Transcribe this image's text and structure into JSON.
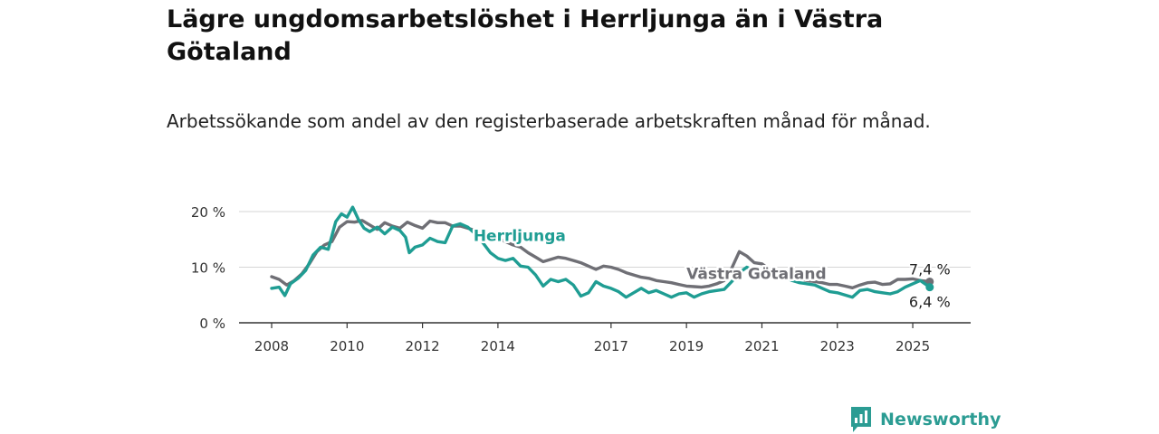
{
  "header": {
    "title": "Lägre ungdomsarbetslöshet i Herrljunga än i Västra Götaland",
    "subtitle": "Arbetssökande som andel av den registerbaserade arbetskraften månad för månad."
  },
  "brand": {
    "name": "Newsworthy",
    "color": "#2b9c93"
  },
  "chart_data": {
    "type": "line",
    "x_unit": "year",
    "xlim": [
      2007.6,
      2025.75
    ],
    "ylim": [
      0,
      20
    ],
    "y_ticks": [
      {
        "value": 0,
        "label": "0 %"
      },
      {
        "value": 10,
        "label": "10 %"
      },
      {
        "value": 20,
        "label": "20 %"
      }
    ],
    "x_ticks": [
      {
        "value": 2008,
        "label": "2008"
      },
      {
        "value": 2010,
        "label": "2010"
      },
      {
        "value": 2012,
        "label": "2012"
      },
      {
        "value": 2014,
        "label": "2014"
      },
      {
        "value": 2017,
        "label": "2017"
      },
      {
        "value": 2019,
        "label": "2019"
      },
      {
        "value": 2021,
        "label": "2021"
      },
      {
        "value": 2023,
        "label": "2023"
      },
      {
        "value": 2025,
        "label": "2025"
      }
    ],
    "grid": true,
    "series": [
      {
        "name": "Västra Götaland",
        "color": "#6f6f75",
        "end_label": "7,4 %",
        "points": [
          [
            2008.0,
            8.3
          ],
          [
            2008.2,
            7.8
          ],
          [
            2008.4,
            6.8
          ],
          [
            2008.6,
            7.6
          ],
          [
            2008.8,
            8.8
          ],
          [
            2009.0,
            10.6
          ],
          [
            2009.2,
            12.8
          ],
          [
            2009.4,
            14.0
          ],
          [
            2009.6,
            14.6
          ],
          [
            2009.8,
            17.2
          ],
          [
            2010.0,
            18.2
          ],
          [
            2010.2,
            18.1
          ],
          [
            2010.4,
            18.4
          ],
          [
            2010.6,
            17.6
          ],
          [
            2010.8,
            16.8
          ],
          [
            2011.0,
            18.0
          ],
          [
            2011.2,
            17.4
          ],
          [
            2011.4,
            17.0
          ],
          [
            2011.6,
            18.1
          ],
          [
            2011.8,
            17.5
          ],
          [
            2012.0,
            17.0
          ],
          [
            2012.2,
            18.3
          ],
          [
            2012.4,
            18.0
          ],
          [
            2012.6,
            18.0
          ],
          [
            2012.8,
            17.4
          ],
          [
            2013.0,
            17.4
          ],
          [
            2013.2,
            17.0
          ],
          [
            2013.4,
            16.6
          ],
          [
            2013.6,
            16.5
          ],
          [
            2013.8,
            15.6
          ],
          [
            2014.0,
            15.2
          ],
          [
            2014.2,
            14.6
          ],
          [
            2014.4,
            14.0
          ],
          [
            2014.6,
            13.6
          ],
          [
            2014.8,
            12.6
          ],
          [
            2015.0,
            11.8
          ],
          [
            2015.2,
            11.0
          ],
          [
            2015.4,
            11.4
          ],
          [
            2015.6,
            11.8
          ],
          [
            2015.8,
            11.6
          ],
          [
            2016.0,
            11.2
          ],
          [
            2016.2,
            10.8
          ],
          [
            2016.4,
            10.2
          ],
          [
            2016.6,
            9.6
          ],
          [
            2016.8,
            10.2
          ],
          [
            2017.0,
            10.0
          ],
          [
            2017.2,
            9.6
          ],
          [
            2017.4,
            9.0
          ],
          [
            2017.6,
            8.6
          ],
          [
            2017.8,
            8.2
          ],
          [
            2018.0,
            8.0
          ],
          [
            2018.2,
            7.6
          ],
          [
            2018.4,
            7.4
          ],
          [
            2018.6,
            7.2
          ],
          [
            2018.8,
            6.9
          ],
          [
            2019.0,
            6.6
          ],
          [
            2019.2,
            6.5
          ],
          [
            2019.4,
            6.4
          ],
          [
            2019.6,
            6.6
          ],
          [
            2019.8,
            7.0
          ],
          [
            2020.0,
            7.6
          ],
          [
            2020.2,
            9.8
          ],
          [
            2020.4,
            12.8
          ],
          [
            2020.6,
            12.0
          ],
          [
            2020.8,
            10.8
          ],
          [
            2021.0,
            10.6
          ],
          [
            2021.2,
            9.6
          ],
          [
            2021.4,
            9.2
          ],
          [
            2021.6,
            8.6
          ],
          [
            2021.8,
            8.2
          ],
          [
            2022.0,
            7.9
          ],
          [
            2022.2,
            7.6
          ],
          [
            2022.4,
            7.4
          ],
          [
            2022.6,
            7.2
          ],
          [
            2022.8,
            6.9
          ],
          [
            2023.0,
            6.9
          ],
          [
            2023.2,
            6.6
          ],
          [
            2023.4,
            6.3
          ],
          [
            2023.6,
            6.8
          ],
          [
            2023.8,
            7.2
          ],
          [
            2024.0,
            7.3
          ],
          [
            2024.2,
            6.9
          ],
          [
            2024.4,
            7.0
          ],
          [
            2024.6,
            7.8
          ],
          [
            2024.8,
            7.8
          ],
          [
            2025.0,
            7.9
          ],
          [
            2025.2,
            7.6
          ],
          [
            2025.45,
            7.4
          ]
        ]
      },
      {
        "name": "Herrljunga",
        "color": "#1f9d93",
        "end_label": "6,4 %",
        "points": [
          [
            2008.0,
            6.2
          ],
          [
            2008.2,
            6.4
          ],
          [
            2008.35,
            4.9
          ],
          [
            2008.5,
            7.0
          ],
          [
            2008.7,
            8.0
          ],
          [
            2008.9,
            9.4
          ],
          [
            2009.1,
            12.2
          ],
          [
            2009.3,
            13.6
          ],
          [
            2009.5,
            13.2
          ],
          [
            2009.7,
            18.2
          ],
          [
            2009.85,
            19.6
          ],
          [
            2010.0,
            19.0
          ],
          [
            2010.15,
            20.8
          ],
          [
            2010.3,
            18.6
          ],
          [
            2010.45,
            17.0
          ],
          [
            2010.6,
            16.4
          ],
          [
            2010.8,
            17.2
          ],
          [
            2011.0,
            16.0
          ],
          [
            2011.2,
            17.2
          ],
          [
            2011.4,
            16.6
          ],
          [
            2011.55,
            15.4
          ],
          [
            2011.65,
            12.6
          ],
          [
            2011.8,
            13.6
          ],
          [
            2012.0,
            14.0
          ],
          [
            2012.2,
            15.2
          ],
          [
            2012.4,
            14.6
          ],
          [
            2012.6,
            14.4
          ],
          [
            2012.8,
            17.4
          ],
          [
            2013.0,
            17.8
          ],
          [
            2013.2,
            17.2
          ],
          [
            2013.4,
            16.0
          ],
          [
            2013.6,
            14.4
          ],
          [
            2013.8,
            12.6
          ],
          [
            2014.0,
            11.6
          ],
          [
            2014.2,
            11.2
          ],
          [
            2014.4,
            11.6
          ],
          [
            2014.6,
            10.2
          ],
          [
            2014.8,
            10.0
          ],
          [
            2015.0,
            8.6
          ],
          [
            2015.2,
            6.6
          ],
          [
            2015.4,
            7.8
          ],
          [
            2015.6,
            7.4
          ],
          [
            2015.8,
            7.8
          ],
          [
            2016.0,
            6.8
          ],
          [
            2016.2,
            4.8
          ],
          [
            2016.4,
            5.4
          ],
          [
            2016.6,
            7.4
          ],
          [
            2016.8,
            6.6
          ],
          [
            2017.0,
            6.2
          ],
          [
            2017.2,
            5.6
          ],
          [
            2017.4,
            4.6
          ],
          [
            2017.6,
            5.4
          ],
          [
            2017.8,
            6.2
          ],
          [
            2018.0,
            5.4
          ],
          [
            2018.2,
            5.8
          ],
          [
            2018.4,
            5.2
          ],
          [
            2018.6,
            4.6
          ],
          [
            2018.8,
            5.2
          ],
          [
            2019.0,
            5.4
          ],
          [
            2019.2,
            4.6
          ],
          [
            2019.4,
            5.2
          ],
          [
            2019.6,
            5.6
          ],
          [
            2019.8,
            5.8
          ],
          [
            2020.0,
            6.0
          ],
          [
            2020.2,
            7.4
          ],
          [
            2020.4,
            9.0
          ],
          [
            2020.6,
            10.0
          ],
          [
            2020.8,
            9.4
          ],
          [
            2021.0,
            9.8
          ],
          [
            2021.2,
            9.2
          ],
          [
            2021.4,
            8.8
          ],
          [
            2021.6,
            8.2
          ],
          [
            2021.8,
            7.6
          ],
          [
            2022.0,
            7.2
          ],
          [
            2022.2,
            7.0
          ],
          [
            2022.4,
            6.8
          ],
          [
            2022.6,
            6.2
          ],
          [
            2022.8,
            5.6
          ],
          [
            2023.0,
            5.4
          ],
          [
            2023.2,
            5.0
          ],
          [
            2023.4,
            4.6
          ],
          [
            2023.6,
            5.8
          ],
          [
            2023.8,
            6.0
          ],
          [
            2024.0,
            5.6
          ],
          [
            2024.2,
            5.4
          ],
          [
            2024.4,
            5.2
          ],
          [
            2024.6,
            5.6
          ],
          [
            2024.8,
            6.4
          ],
          [
            2025.0,
            7.0
          ],
          [
            2025.2,
            7.6
          ],
          [
            2025.45,
            6.4
          ]
        ]
      }
    ],
    "series_labels": [
      {
        "series": "Herrljunga",
        "text": "Herrljunga",
        "x": 2013.35,
        "y": 14.7
      },
      {
        "series": "Västra Götaland",
        "text": "Västra Götaland",
        "x": 2019.0,
        "y": 7.9
      }
    ]
  }
}
